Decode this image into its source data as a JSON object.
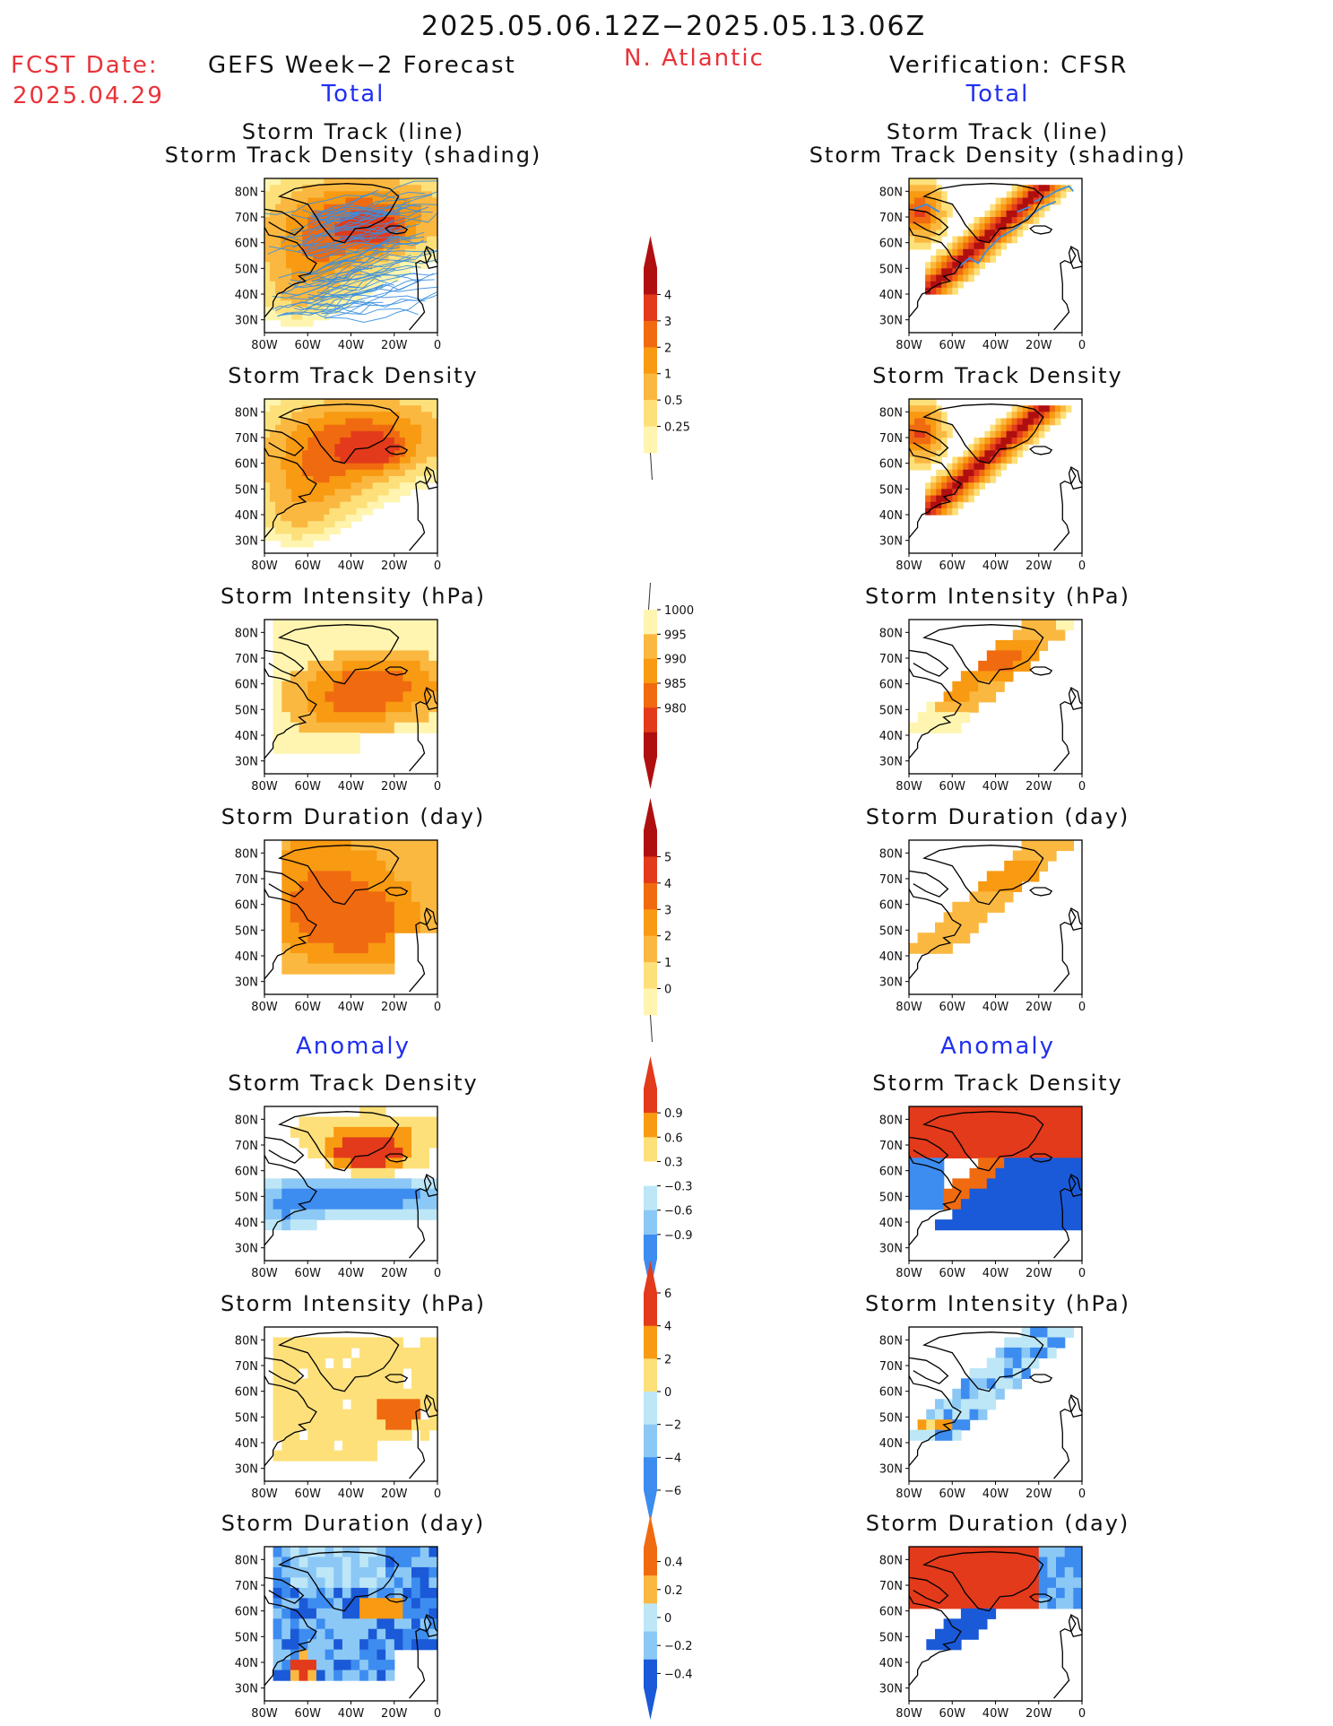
{
  "header": {
    "date_range": "2025.05.06.12Z−2025.05.13.06Z",
    "fcst_label": "FCST Date:",
    "fcst_date": "2025.04.29",
    "left_title": "GEFS Week−2 Forecast",
    "region": "N. Atlantic",
    "right_title": "Verification: CFSR",
    "left_section_total": "Total",
    "right_section_total": "Total",
    "left_section_anomaly": "Anomaly",
    "right_section_anomaly": "Anomaly"
  },
  "panel_titles": {
    "track_line": "Storm Track (line)",
    "track_shading": "Storm Track Density (shading)",
    "density": "Storm Track Density",
    "intensity": "Storm Intensity (hPa)",
    "duration": "Storm Duration (day)"
  },
  "axes": {
    "lat_ticks": [
      "80N",
      "70N",
      "60N",
      "50N",
      "40N",
      "30N"
    ],
    "lon_ticks": [
      "80W",
      "60W",
      "40W",
      "20W",
      "0"
    ]
  },
  "colorbars": {
    "density_total": [
      "4",
      "3",
      "2",
      "1",
      "0.5",
      "0.25"
    ],
    "intensity_total": [
      "1000",
      "995",
      "990",
      "985",
      "980"
    ],
    "duration_total": [
      "5",
      "4",
      "3",
      "2",
      "1",
      "0"
    ],
    "density_anom": [
      "0.9",
      "0.6",
      "0.3",
      "−0.3",
      "−0.6",
      "−0.9"
    ],
    "intensity_anom": [
      "6",
      "4",
      "2",
      "0",
      "−2",
      "−4",
      "−6"
    ],
    "duration_anom": [
      "0.4",
      "0.2",
      "0",
      "−0.2",
      "−0.4"
    ]
  },
  "colors": {
    "header_red": "#e8333a",
    "section_blue": "#2030f0",
    "track_line": "#3a8fe0",
    "warm_1": "#fff5b0",
    "warm_2": "#fde07a",
    "warm_3": "#fbb841",
    "warm_4": "#f89a12",
    "warm_5": "#f06a10",
    "warm_6": "#e23a1a",
    "warm_7": "#b00f0f",
    "cool_1": "#bde7f7",
    "cool_2": "#8cc8f5",
    "cool_3": "#3d8cf0",
    "cool_4": "#1a5ad8"
  },
  "chart_data": [
    {
      "type": "heatmap",
      "panel": "forecast-track-total",
      "lat_range": [
        25,
        85
      ],
      "lon_range": [
        -80,
        0
      ]
    },
    {
      "type": "heatmap",
      "panel": "forecast-density-total",
      "lat_range": [
        25,
        85
      ],
      "lon_range": [
        -80,
        0
      ]
    },
    {
      "type": "heatmap",
      "panel": "forecast-intensity-total",
      "lat_range": [
        25,
        85
      ],
      "lon_range": [
        -80,
        0
      ]
    },
    {
      "type": "heatmap",
      "panel": "forecast-duration-total",
      "lat_range": [
        25,
        85
      ],
      "lon_range": [
        -80,
        0
      ]
    },
    {
      "type": "heatmap",
      "panel": "forecast-density-anomaly",
      "lat_range": [
        25,
        85
      ],
      "lon_range": [
        -80,
        0
      ]
    },
    {
      "type": "heatmap",
      "panel": "forecast-intensity-anomaly",
      "lat_range": [
        25,
        85
      ],
      "lon_range": [
        -80,
        0
      ]
    },
    {
      "type": "heatmap",
      "panel": "forecast-duration-anomaly",
      "lat_range": [
        25,
        85
      ],
      "lon_range": [
        -80,
        0
      ]
    },
    {
      "type": "heatmap",
      "panel": "verification-track-total",
      "lat_range": [
        25,
        85
      ],
      "lon_range": [
        -80,
        0
      ]
    },
    {
      "type": "heatmap",
      "panel": "verification-density-total",
      "lat_range": [
        25,
        85
      ],
      "lon_range": [
        -80,
        0
      ]
    },
    {
      "type": "heatmap",
      "panel": "verification-intensity-total",
      "lat_range": [
        25,
        85
      ],
      "lon_range": [
        -80,
        0
      ]
    },
    {
      "type": "heatmap",
      "panel": "verification-duration-total",
      "lat_range": [
        25,
        85
      ],
      "lon_range": [
        -80,
        0
      ]
    },
    {
      "type": "heatmap",
      "panel": "verification-density-anomaly",
      "lat_range": [
        25,
        85
      ],
      "lon_range": [
        -80,
        0
      ]
    },
    {
      "type": "heatmap",
      "panel": "verification-intensity-anomaly",
      "lat_range": [
        25,
        85
      ],
      "lon_range": [
        -80,
        0
      ]
    },
    {
      "type": "heatmap",
      "panel": "verification-duration-anomaly",
      "lat_range": [
        25,
        85
      ],
      "lon_range": [
        -80,
        0
      ]
    }
  ]
}
